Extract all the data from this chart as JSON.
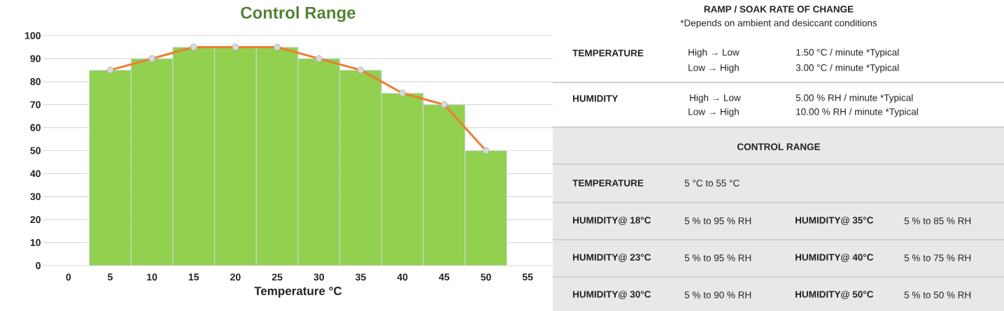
{
  "chart_data": [
    {
      "type": "bar",
      "title": "Control Range",
      "xlabel": "Temperature °C",
      "x": [
        5,
        10,
        15,
        20,
        25,
        30,
        35,
        40,
        45,
        50
      ],
      "series": [
        {
          "type": "bar",
          "color": "#92d050",
          "values": [
            85,
            90,
            95,
            95,
            95,
            90,
            85,
            75,
            70,
            50
          ]
        },
        {
          "type": "line",
          "color": "#ed7d31",
          "values": [
            85,
            90,
            95,
            95,
            95,
            90,
            85,
            75,
            70,
            50
          ]
        }
      ],
      "marker": "circle",
      "xlim": [
        -3,
        58
      ],
      "xticks": [
        0,
        5,
        10,
        15,
        20,
        25,
        30,
        35,
        40,
        45,
        50,
        55
      ],
      "ylim": [
        0,
        100
      ],
      "yticks": [
        0,
        10,
        20,
        30,
        40,
        50,
        60,
        70,
        80,
        90,
        100
      ],
      "grid": "y"
    },
    {
      "type": "other",
      "title": "RAMP / SOAK RATE OF CHANGE",
      "subtitle": "*Depends on ambient and desiccant conditions",
      "annotations": [
        "TEMPERATURE",
        "High → Low",
        "1.50 °C / minute *Typical",
        "Low → High",
        "3.00 °C  / minute *Typical",
        "HUMIDITY",
        "High → Low",
        "5.00 % RH / minute *Typical",
        "Low → High",
        "10.00 % RH / minute *Typical",
        "CONTROL RANGE",
        "TEMPERATURE",
        "5 °C to 55 °C",
        "HUMIDITY@ 18°C",
        "5 % to 95 % RH",
        "HUMIDITY@ 35°C",
        "5 % to 85 % RH",
        "HUMIDITY@ 23°C",
        "5 % to 95 % RH",
        "HUMIDITY@ 40°C",
        "5 % to 75 % RH",
        "HUMIDITY@ 30°C",
        "5 % to 90 % RH",
        "HUMIDITY@ 50°C",
        "5 % to 50 % RH"
      ]
    }
  ]
}
